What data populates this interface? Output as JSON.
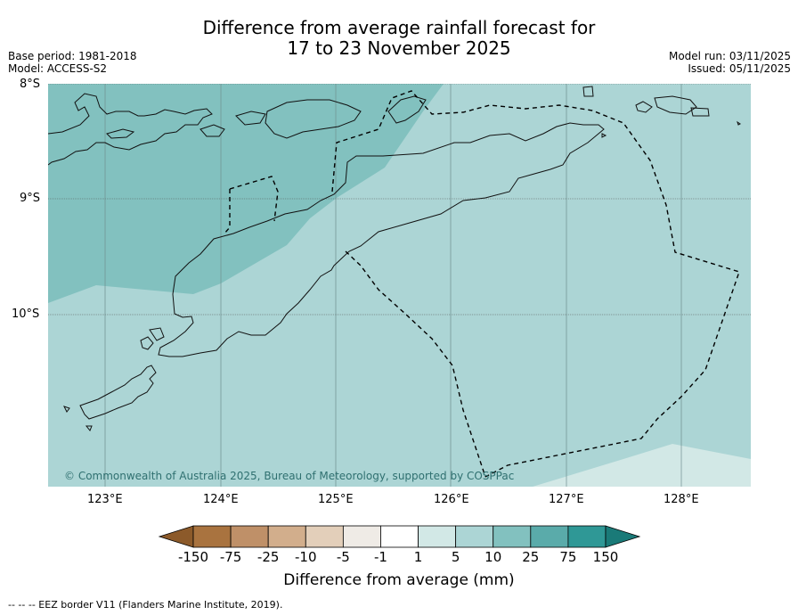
{
  "title_line1": "Difference from average rainfall forecast for",
  "title_line2": "17 to 23 November 2025",
  "meta_left": [
    "Base period: 1981-2018",
    "Model: ACCESS-S2"
  ],
  "meta_right": [
    "Model run: 03/11/2025",
    "Issued: 05/11/2025"
  ],
  "lat_labels": [
    "8°S",
    "9°S",
    "10°S"
  ],
  "lon_labels": [
    "123°E",
    "124°E",
    "125°E",
    "126°E",
    "127°E",
    "128°E"
  ],
  "copyright": "© Commonwealth of Australia 2025, Bureau of Meteorology, supported by COSPPac",
  "colorbar": {
    "ticks": [
      "-150",
      "-75",
      "-25",
      "-10",
      "-5",
      "-1",
      "1",
      "5",
      "10",
      "25",
      "75",
      "150"
    ],
    "label": "Difference from average (mm)",
    "colors": [
      "#8c5a2a",
      "#a9733f",
      "#bf9068",
      "#d2ae8c",
      "#e3cfba",
      "#efebe6",
      "#ffffff",
      "#d2e8e6",
      "#acd5d5",
      "#82c1bf",
      "#5aabaa",
      "#2f9896",
      "#1a7a78"
    ]
  },
  "footer": "--  --  -- EEZ border V11 (Flanders Marine Institute, 2019).",
  "legend": {
    "region_colors": {
      "land_zone_25_75": "#82c1bf",
      "zone_10_25": "#acd5d5",
      "zone_5_10": "#d2e8e6"
    }
  }
}
